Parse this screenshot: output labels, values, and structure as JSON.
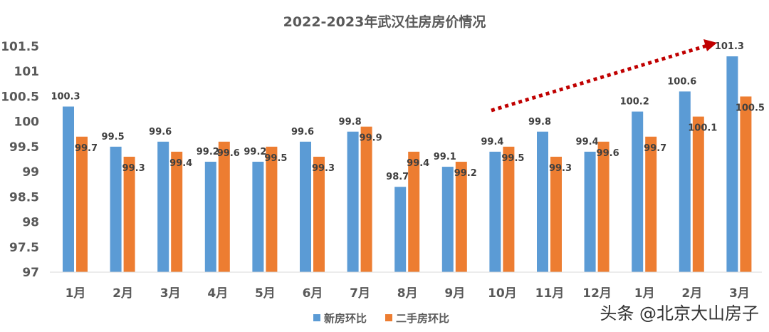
{
  "chart_data": {
    "type": "bar",
    "title": "2022-2023年武汉住房房价情况",
    "categories": [
      "1月",
      "2月",
      "3月",
      "4月",
      "5月",
      "6月",
      "7月",
      "8月",
      "9月",
      "10月",
      "11月",
      "12月",
      "1月",
      "2月",
      "3月"
    ],
    "series": [
      {
        "name": "新房环比",
        "color": "#5B9BD5",
        "values": [
          100.3,
          99.5,
          99.6,
          99.2,
          99.2,
          99.6,
          99.8,
          98.7,
          99.1,
          99.4,
          99.8,
          99.4,
          100.2,
          100.6,
          101.3
        ]
      },
      {
        "name": "二手房环比",
        "color": "#ED7D31",
        "values": [
          99.7,
          99.3,
          99.4,
          99.6,
          99.5,
          99.3,
          99.9,
          99.4,
          99.2,
          99.5,
          99.3,
          99.6,
          99.7,
          100.1,
          100.5
        ]
      }
    ],
    "ylim": [
      97,
      101.5
    ],
    "yticks": [
      "97",
      "97.5",
      "98",
      "98.5",
      "99",
      "99.5",
      "100",
      "100.5",
      "101",
      "101.5"
    ],
    "xlabel": "",
    "ylabel": "",
    "grid": false,
    "legend": "bottom",
    "annotation": "dotted red trend arrow rising over 10月–3月",
    "annotation_color": "#C00000"
  },
  "watermark": "头条 @北京大山房子"
}
